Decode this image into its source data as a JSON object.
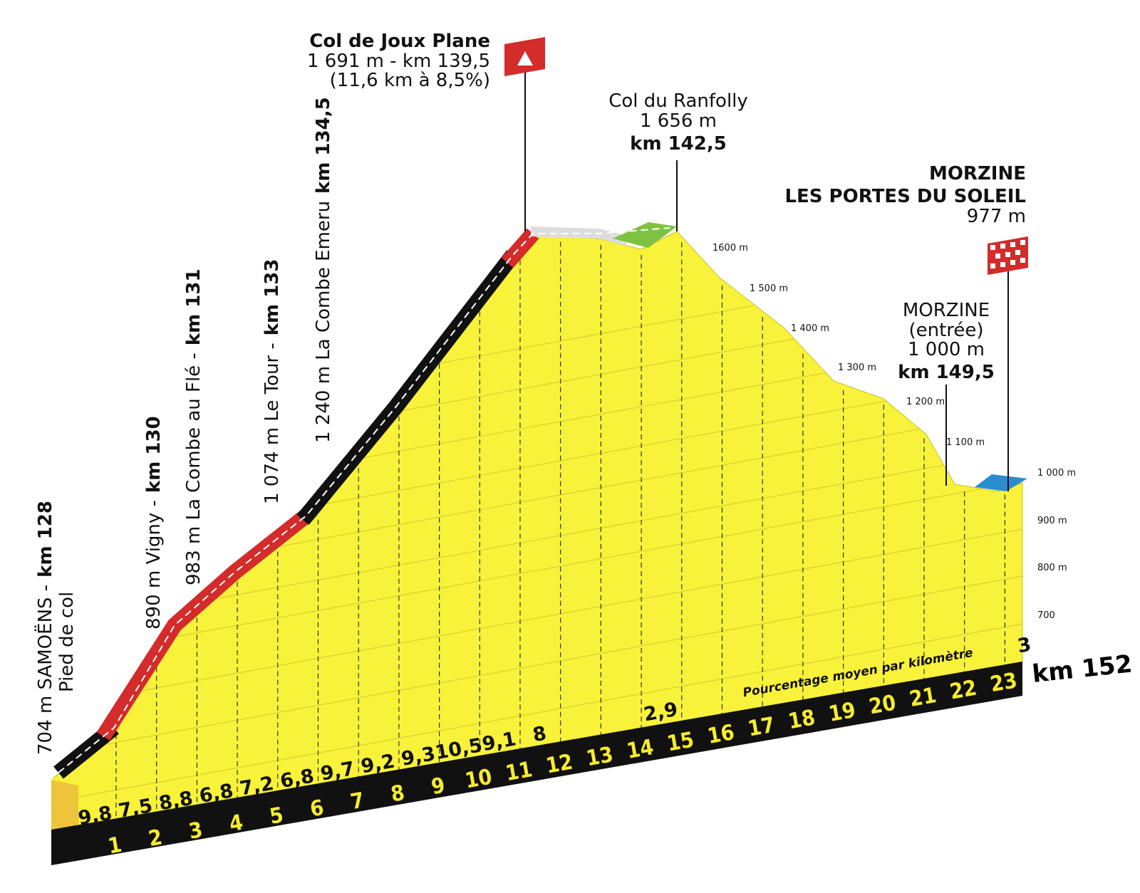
{
  "summit": {
    "name": "Col de Joux Plane",
    "detail": "1 691 m - km 139,5",
    "climb": "(11,6 km à 8,5%)"
  },
  "ranfolly": {
    "name": "Col du Ranfolly",
    "altitude": "1 656 m",
    "km": "km 142,5"
  },
  "finish": {
    "line1": "MORZINE",
    "line2": "LES PORTES DU SOLEIL",
    "altitude": "977 m"
  },
  "entry": {
    "name": "MORZINE",
    "note": "(entrée)",
    "altitude": "1 000 m",
    "km": "km 149,5"
  },
  "waypoints": [
    {
      "label": "704 m SAMOËNS -",
      "km": "km 128",
      "note": "Pied de col"
    },
    {
      "label": "890 m Vigny -",
      "km": "km 130"
    },
    {
      "label": "983 m La Combe au Flé -",
      "km": "km 131"
    },
    {
      "label": "1 074 m Le Tour -",
      "km": "km 133"
    },
    {
      "label": "1 240 m La Combe Emeru",
      "km": "km 134,5"
    }
  ],
  "km_markers": [
    "1",
    "2",
    "3",
    "4",
    "5",
    "6",
    "7",
    "8",
    "9",
    "10",
    "11",
    "12",
    "13",
    "14",
    "15",
    "16",
    "17",
    "18",
    "19",
    "20",
    "21",
    "22",
    "23"
  ],
  "gradients": [
    "9,8",
    "7,5",
    "8,8",
    "6,8",
    "7,2",
    "6,8",
    "9,7",
    "9,2",
    "9,3",
    "10,5",
    "9,1",
    "8",
    null,
    null,
    "2,9",
    null,
    null,
    null,
    null,
    null,
    null,
    null,
    null,
    "3"
  ],
  "final_km": "km 152",
  "caption": "Pourcentage moyen par kilomètre",
  "altitude_scale": [
    "1600 m",
    "1 500 m",
    "1 400 m",
    "1 300 m",
    "1 200 m",
    "1 100 m",
    "1 000 m",
    "900 m",
    "800 m",
    "700"
  ]
}
